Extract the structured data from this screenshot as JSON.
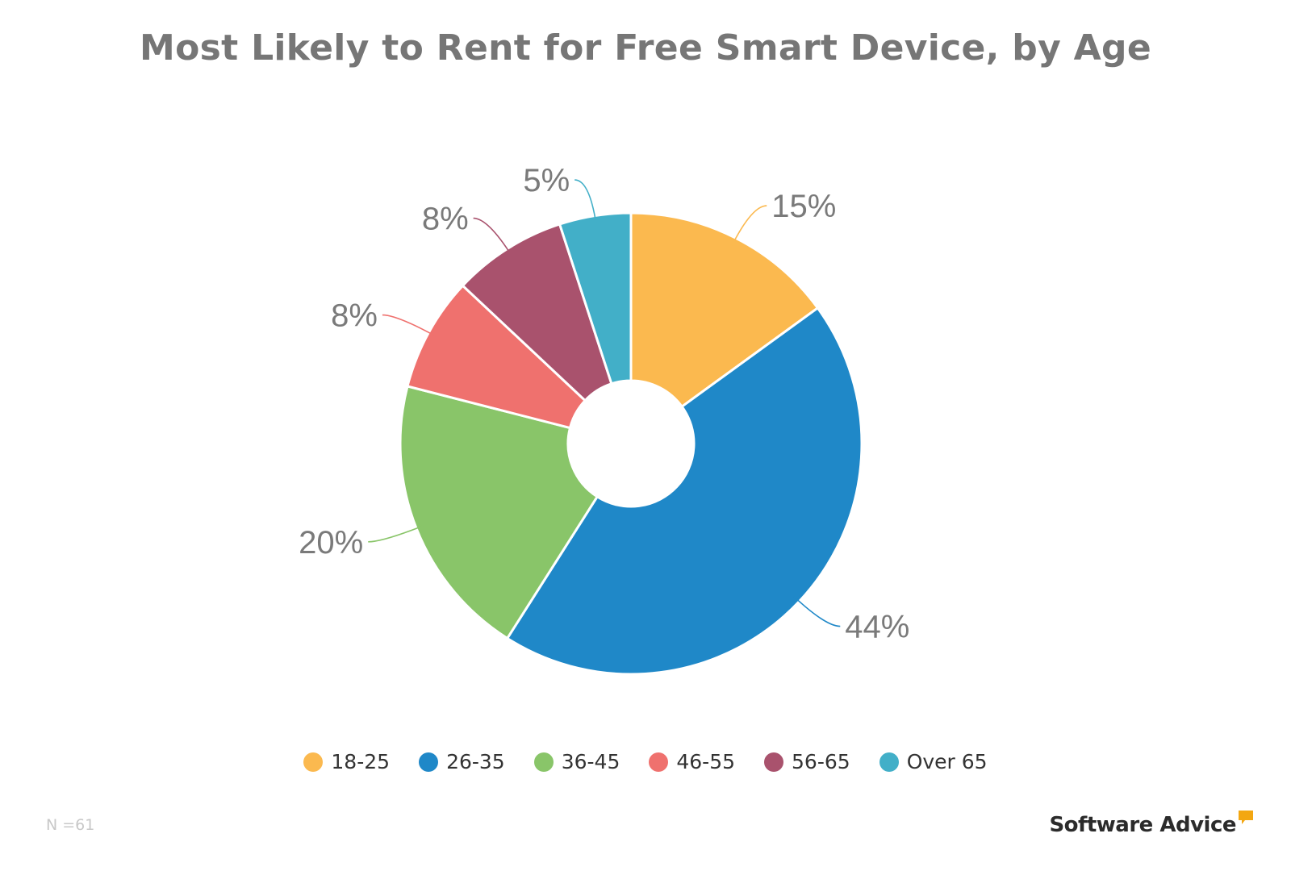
{
  "chart_data": {
    "type": "pie",
    "title": "Most Likely to Rent for Free Smart Device, by Age",
    "donut": true,
    "categories": [
      "18-25",
      "26-35",
      "36-45",
      "46-55",
      "56-65",
      "Over 65"
    ],
    "values": [
      15,
      44,
      20,
      8,
      8,
      5
    ],
    "value_labels": [
      "15%",
      "44%",
      "20%",
      "8%",
      "8%",
      "5%"
    ],
    "colors": [
      "#fbb94f",
      "#1f88c8",
      "#89c569",
      "#ef716e",
      "#a9526d",
      "#42afc8"
    ],
    "legend_position": "bottom",
    "note": "N =61"
  },
  "branding": {
    "logo_text": "Software Advice",
    "logo_icon": "speech-bubble-icon",
    "logo_color": "#f3a712"
  }
}
